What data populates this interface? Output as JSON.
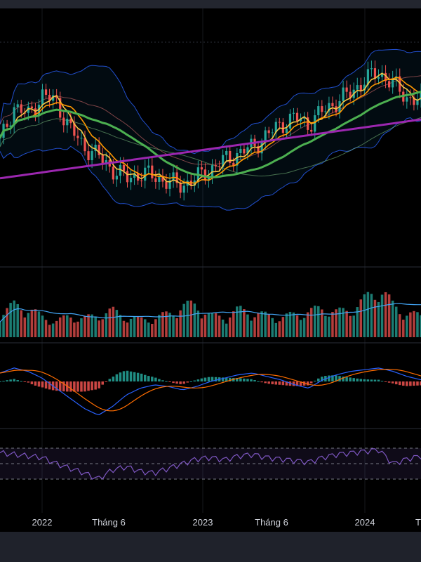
{
  "chart_data": {
    "type": "line",
    "title": "",
    "x_ticks": [
      "2022",
      "Tháng 6",
      "2023",
      "Tháng 6",
      "2024",
      "T"
    ],
    "x_range": [
      "2021-09",
      "2024-04"
    ],
    "panes": [
      {
        "name": "price",
        "kind": "candlestick",
        "overlays": [
          "moving-averages",
          "bollinger-bands",
          "ichimoku-cloud"
        ],
        "close": [
          52,
          68,
          64,
          73,
          70,
          58,
          50,
          46,
          40,
          36,
          38,
          37,
          34,
          33,
          36,
          40,
          44,
          47,
          50,
          55,
          60,
          63,
          60,
          66,
          70,
          74,
          80,
          83,
          78,
          72,
          70
        ]
      },
      {
        "name": "volume",
        "kind": "bar",
        "values": [
          45,
          60,
          55,
          38,
          30,
          40,
          35,
          42,
          50,
          38,
          33,
          36,
          44,
          58,
          62,
          40,
          38,
          52,
          46,
          41,
          37,
          43,
          48,
          55,
          47,
          52,
          70,
          95,
          60,
          45,
          40
        ]
      },
      {
        "name": "macd",
        "kind": "line+histogram",
        "values": [
          5,
          8,
          6,
          2,
          -4,
          -10,
          -16,
          -20,
          -15,
          -8,
          -4,
          -2,
          -3,
          -5,
          -3,
          0,
          2,
          4,
          5,
          3,
          1,
          -2,
          -4,
          1,
          4,
          6,
          7,
          8,
          6,
          3,
          1
        ]
      },
      {
        "name": "rsi",
        "kind": "line",
        "levels": [
          70,
          50,
          30
        ],
        "values": [
          64,
          62,
          60,
          58,
          50,
          44,
          38,
          30,
          42,
          46,
          40,
          38,
          44,
          50,
          56,
          58,
          55,
          60,
          62,
          58,
          56,
          54,
          52,
          58,
          62,
          64,
          66,
          68,
          50,
          56,
          60
        ]
      }
    ],
    "colors": {
      "up": "#26a69a",
      "down": "#ef5350",
      "ma_fast": "#f5c542",
      "ma_mid": "#ff9800",
      "ma_slow": "#4caf50",
      "ma_long": "#9c27b0",
      "bollinger": "#2962ff",
      "macd_line": "#2962ff",
      "signal_line": "#ff6d00",
      "rsi": "#7e57c2"
    }
  }
}
